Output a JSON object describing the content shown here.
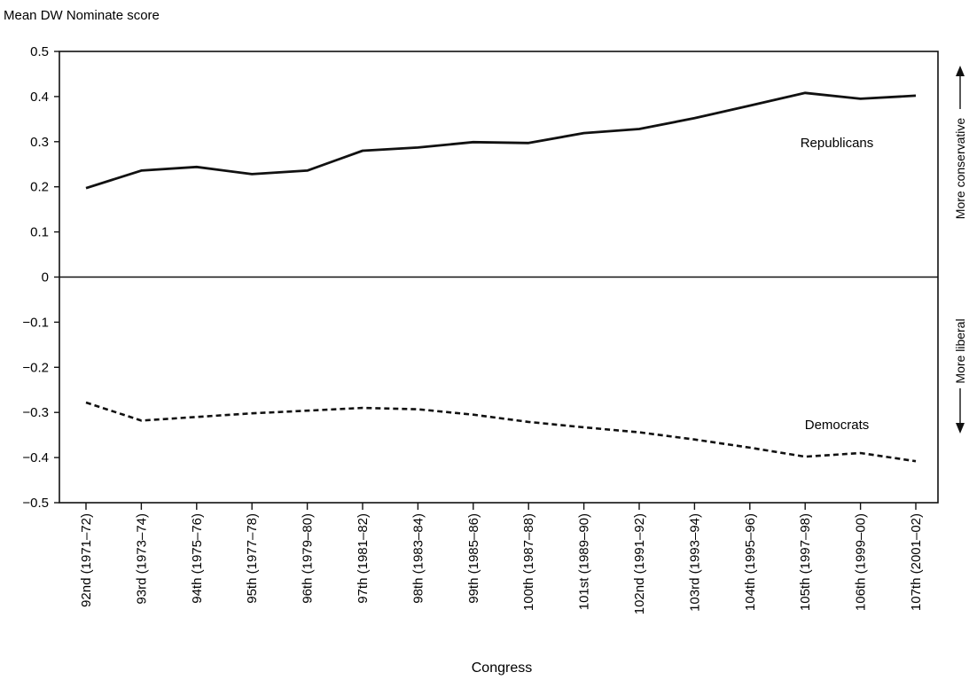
{
  "chart_data": {
    "type": "line",
    "title": "Mean DW Nominate score",
    "xlabel": "Congress",
    "ylabel": "",
    "ylim": [
      -0.5,
      0.5
    ],
    "yticks": [
      "0.5",
      "0.4",
      "0.3",
      "0.2",
      "0.1",
      "0",
      "−0.1",
      "−0.2",
      "−0.3",
      "−0.4",
      "−0.5"
    ],
    "ytick_values": [
      0.5,
      0.4,
      0.3,
      0.2,
      0.1,
      0,
      -0.1,
      -0.2,
      -0.3,
      -0.4,
      -0.5
    ],
    "categories": [
      "92nd (1971–72)",
      "93rd (1973–74)",
      "94th (1975–76)",
      "95th (1977–78)",
      "96th (1979–80)",
      "97th (1981–82)",
      "98th (1983–84)",
      "99th (1985–86)",
      "100th (1987–88)",
      "101st (1989–90)",
      "102nd (1991–92)",
      "103rd (1993–94)",
      "104th (1995–96)",
      "105th (1997–98)",
      "106th (1999–00)",
      "107th (2001–02)"
    ],
    "series": [
      {
        "name": "Republicans",
        "style": "solid",
        "values": [
          0.197,
          0.236,
          0.244,
          0.228,
          0.236,
          0.28,
          0.287,
          0.299,
          0.297,
          0.319,
          0.328,
          0.352,
          0.38,
          0.408,
          0.395,
          0.402
        ]
      },
      {
        "name": "Democrats",
        "style": "dashed",
        "values": [
          -0.278,
          -0.318,
          -0.31,
          -0.302,
          -0.296,
          -0.29,
          -0.293,
          -0.305,
          -0.321,
          -0.333,
          -0.344,
          -0.36,
          -0.378,
          -0.398,
          -0.39,
          -0.408
        ]
      }
    ],
    "annotations": {
      "upper": "More conservative",
      "lower": "More liberal"
    },
    "grid": false,
    "zero_line": true,
    "colors": {
      "line": "#111111",
      "axis": "#111111"
    }
  }
}
